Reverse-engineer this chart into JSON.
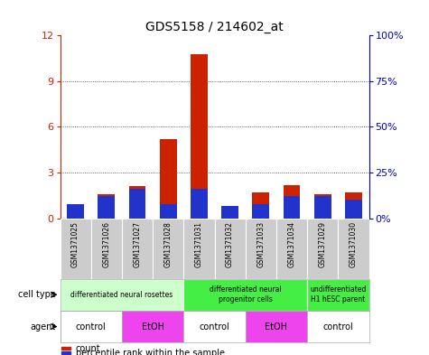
{
  "title": "GDS5158 / 214602_at",
  "samples": [
    "GSM1371025",
    "GSM1371026",
    "GSM1371027",
    "GSM1371028",
    "GSM1371031",
    "GSM1371032",
    "GSM1371033",
    "GSM1371034",
    "GSM1371029",
    "GSM1371030"
  ],
  "counts": [
    0.7,
    1.6,
    2.1,
    5.2,
    10.8,
    0.55,
    1.7,
    2.2,
    1.6,
    1.7
  ],
  "percentile": [
    8,
    12,
    16,
    8,
    16,
    7,
    8,
    12,
    12,
    10
  ],
  "ylim_left": [
    0,
    12
  ],
  "ylim_right": [
    0,
    100
  ],
  "yticks_left": [
    0,
    3,
    6,
    9,
    12
  ],
  "yticks_right": [
    0,
    25,
    50,
    75,
    100
  ],
  "ytick_labels_left": [
    "0",
    "3",
    "6",
    "9",
    "12"
  ],
  "ytick_labels_right": [
    "0%",
    "25%",
    "50%",
    "75%",
    "100%"
  ],
  "bar_color": "#cc2200",
  "percentile_color": "#2233cc",
  "cell_types": [
    {
      "label": "differentiated neural rosettes",
      "start": 0,
      "end": 4,
      "color": "#ccffcc"
    },
    {
      "label": "differentiated neural\nprogenitor cells",
      "start": 4,
      "end": 8,
      "color": "#44ee44"
    },
    {
      "label": "undifferentiated\nH1 hESC parent",
      "start": 8,
      "end": 10,
      "color": "#44ee44"
    }
  ],
  "agents": [
    {
      "label": "control",
      "start": 0,
      "end": 2,
      "color": "#ffffff"
    },
    {
      "label": "EtOH",
      "start": 2,
      "end": 4,
      "color": "#ee44ee"
    },
    {
      "label": "control",
      "start": 4,
      "end": 6,
      "color": "#ffffff"
    },
    {
      "label": "EtOH",
      "start": 6,
      "end": 8,
      "color": "#ee44ee"
    },
    {
      "label": "control",
      "start": 8,
      "end": 10,
      "color": "#ffffff"
    }
  ],
  "grid_color": "#333333",
  "bg_color": "#ffffff",
  "sample_bg_color": "#cccccc",
  "title_fontsize": 10
}
